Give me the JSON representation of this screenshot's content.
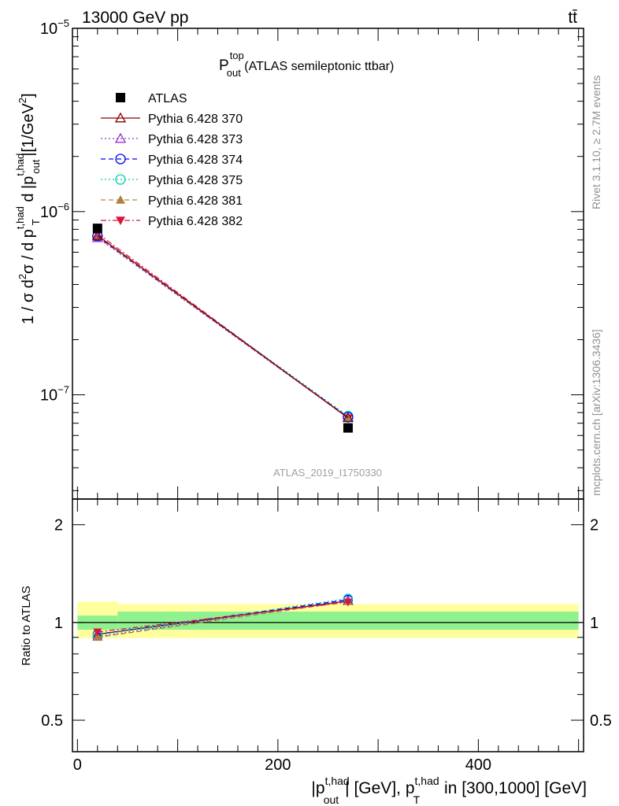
{
  "header": {
    "left": "13000 GeV pp",
    "right": "tt̄"
  },
  "side_labels": {
    "rivet": "Rivet 3.1.10, ≥ 2.7M events",
    "mcplots": "mcplots.cern.ch [arXiv:1306.3436]"
  },
  "watermark": "ATLAS_2019_I1750330",
  "chart_data": [
    {
      "type": "line",
      "panel": "main",
      "title": "P_out^top (ATLAS semileptonic ttbar)",
      "title_main": "P",
      "title_sup": "top",
      "title_sub": "out",
      "title_rest": " (ATLAS semileptonic ttbar)",
      "ylabel": "1 / σ d²σ / d p_T^t,had d |p_out^t,had| [1/GeV²]",
      "ylabel_parts": [
        "1 / σ d",
        "2",
        "σ / d p",
        "t,had",
        "T",
        " d |p",
        "t,had",
        "out",
        "|[1/GeV",
        "2",
        "]"
      ],
      "yscale": "log",
      "ylim": [
        2.7e-08,
        1e-05
      ],
      "xlim": [
        -5,
        505
      ],
      "ytick_labels": [
        {
          "value": 1e-07,
          "base": "10",
          "exp": "−7"
        },
        {
          "value": 1e-06,
          "base": "10",
          "exp": "−6"
        },
        {
          "value": 1e-05,
          "base": "10",
          "exp": "−5"
        }
      ],
      "legend_position": "top-left",
      "x": [
        20,
        270
      ],
      "series": [
        {
          "name": "ATLAS",
          "values": [
            8.1e-07,
            6.6e-08
          ],
          "color": "#000000",
          "marker": "square",
          "dash": "none"
        },
        {
          "name": "Pythia 6.428 370",
          "values": [
            7.4e-07,
            7.5e-08
          ],
          "color": "#8b0000",
          "marker": "triangle-open",
          "dash": "solid"
        },
        {
          "name": "Pythia 6.428 373",
          "values": [
            7.2e-07,
            7.5e-08
          ],
          "color": "#9932cc",
          "marker": "triangle-open",
          "dash": "dotted"
        },
        {
          "name": "Pythia 6.428 374",
          "values": [
            7.35e-07,
            7.55e-08
          ],
          "color": "#0000ff",
          "marker": "circle-open",
          "dash": "dashed"
        },
        {
          "name": "Pythia 6.428 375",
          "values": [
            7.35e-07,
            7.65e-08
          ],
          "color": "#00cdb4",
          "marker": "circle-open",
          "dash": "dotted"
        },
        {
          "name": "Pythia 6.428 381",
          "values": [
            7.25e-07,
            7.5e-08
          ],
          "color": "#b08040",
          "marker": "triangle",
          "dash": "dashed"
        },
        {
          "name": "Pythia 6.428 382",
          "values": [
            7.6e-07,
            7.45e-08
          ],
          "color": "#dc143c",
          "marker": "triangle-down",
          "dash": "dashdot"
        }
      ]
    },
    {
      "type": "line",
      "panel": "ratio",
      "ylabel": "Ratio to ATLAS",
      "yscale": "log",
      "ylim": [
        0.4,
        2.4
      ],
      "xlim": [
        -5,
        505
      ],
      "ytick_labels": [
        {
          "value": 0.5,
          "label": "0.5"
        },
        {
          "value": 1,
          "label": "1"
        },
        {
          "value": 2,
          "label": "2"
        }
      ],
      "xtick_labels": [
        {
          "value": 0,
          "label": "0"
        },
        {
          "value": 200,
          "label": "200"
        },
        {
          "value": 400,
          "label": "400"
        }
      ],
      "xlabel": "|p_out^t,had| [GeV], p_T^t,had in [300,1000] [GeV]",
      "xlabel_parts": [
        "|p",
        "t,had",
        "out",
        "| [GeV], p",
        "t,had",
        "T",
        " in [300,1000] [GeV]"
      ],
      "bands": [
        {
          "x": [
            0,
            40
          ],
          "stat": [
            0.95,
            1.05
          ],
          "total": [
            0.895,
            1.16
          ]
        },
        {
          "x": [
            40,
            500
          ],
          "stat": [
            0.95,
            1.08
          ],
          "total": [
            0.895,
            1.14
          ]
        }
      ],
      "band_colors": {
        "stat": "#8ff28f",
        "total": "#ffff9e"
      },
      "x": [
        20,
        270
      ],
      "series": [
        {
          "name": "Pythia 6.428 370",
          "values": [
            0.92,
            1.165
          ],
          "color": "#8b0000",
          "marker": "triangle-open",
          "dash": "solid"
        },
        {
          "name": "Pythia 6.428 373",
          "values": [
            0.905,
            1.17
          ],
          "color": "#9932cc",
          "marker": "triangle-open",
          "dash": "dotted"
        },
        {
          "name": "Pythia 6.428 374",
          "values": [
            0.92,
            1.175
          ],
          "color": "#0000ff",
          "marker": "circle-open",
          "dash": "dashed"
        },
        {
          "name": "Pythia 6.428 375",
          "values": [
            0.915,
            1.185
          ],
          "color": "#00cdb4",
          "marker": "circle-open",
          "dash": "dotted"
        },
        {
          "name": "Pythia 6.428 381",
          "values": [
            0.9,
            1.16
          ],
          "color": "#b08040",
          "marker": "triangle",
          "dash": "dashed"
        },
        {
          "name": "Pythia 6.428 382",
          "values": [
            0.935,
            1.155
          ],
          "color": "#dc143c",
          "marker": "triangle-down",
          "dash": "dashdot"
        }
      ]
    }
  ]
}
